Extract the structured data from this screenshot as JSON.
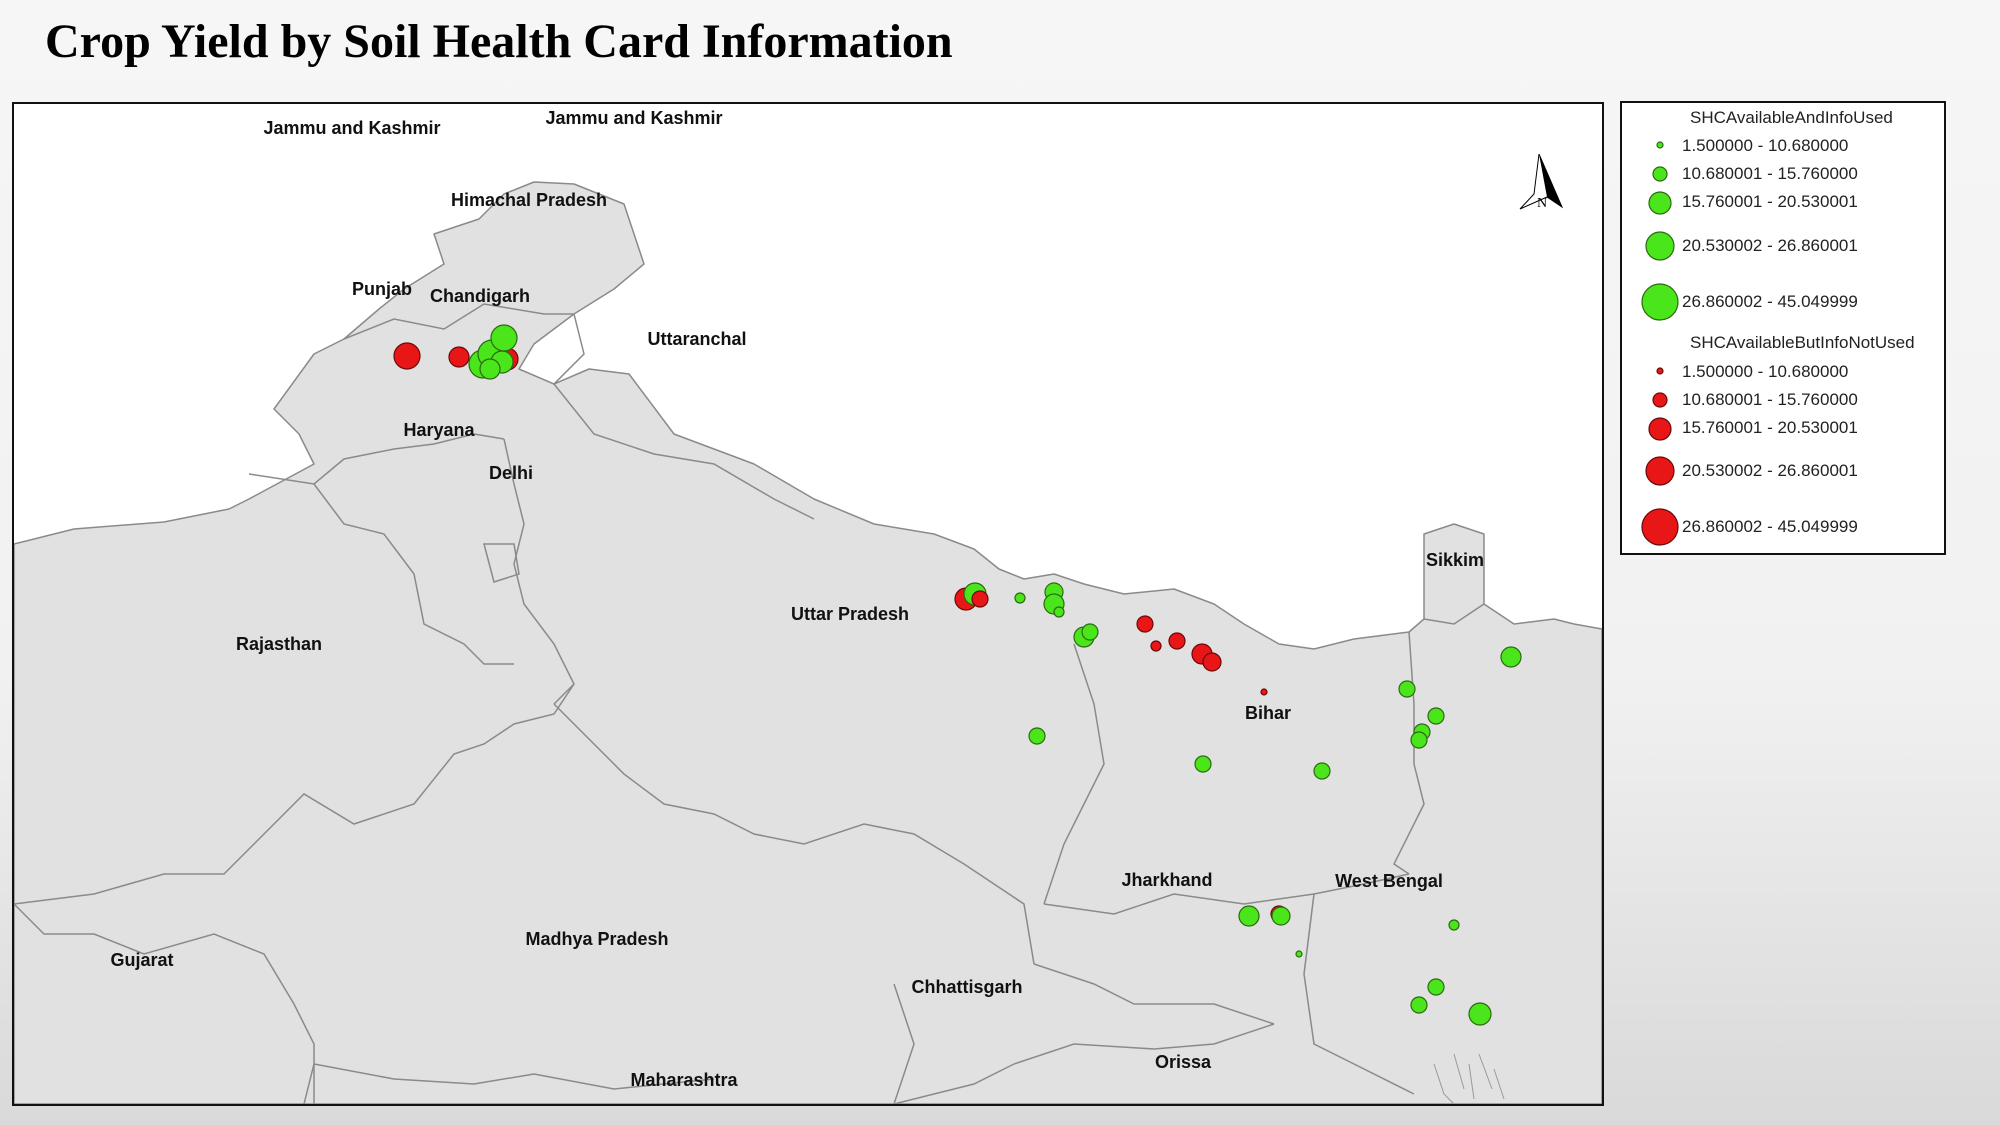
{
  "title": "Crop Yield by Soil Health Card Information",
  "north_arrow": {
    "label": "N"
  },
  "states": {
    "jammu_kashmir_1": "Jammu and Kashmir",
    "jammu_kashmir_2": "Jammu and Kashmir",
    "himachal": "Himachal Pradesh",
    "punjab": "Punjab",
    "chandigarh": "Chandigarh",
    "uttaranchal": "Uttaranchal",
    "haryana": "Haryana",
    "delhi": "Delhi",
    "rajasthan": "Rajasthan",
    "uttar_pradesh": "Uttar Pradesh",
    "bihar": "Bihar",
    "sikkim": "Sikkim",
    "jharkhand": "Jharkhand",
    "west_bengal": "West Bengal",
    "gujarat": "Gujarat",
    "madhya_pradesh": "Madhya Pradesh",
    "chhattisgarh": "Chhattisgarh",
    "orissa": "Orissa",
    "maharashtra": "Maharashtra"
  },
  "legend": {
    "groups": [
      {
        "heading": "SHCAvailableAndInfoUsed",
        "color": "#4ae61b",
        "classes": [
          "1.500000 - 10.680000",
          "10.680001 - 15.760000",
          "15.760001 - 20.530001",
          "20.530002 - 26.860001",
          "26.860002 - 45.049999"
        ]
      },
      {
        "heading": "SHCAvailableButInfoNotUsed",
        "color": "#e81616",
        "classes": [
          "1.500000 - 10.680000",
          "10.680001 - 15.760000",
          "15.760001 - 20.530001",
          "20.530002 - 26.860001",
          "26.860002 - 45.049999"
        ]
      }
    ]
  },
  "colors": {
    "land": "#e1e1e1",
    "border": "#8a8a8a",
    "used": "#4ae61b",
    "not_used": "#e81616"
  }
}
